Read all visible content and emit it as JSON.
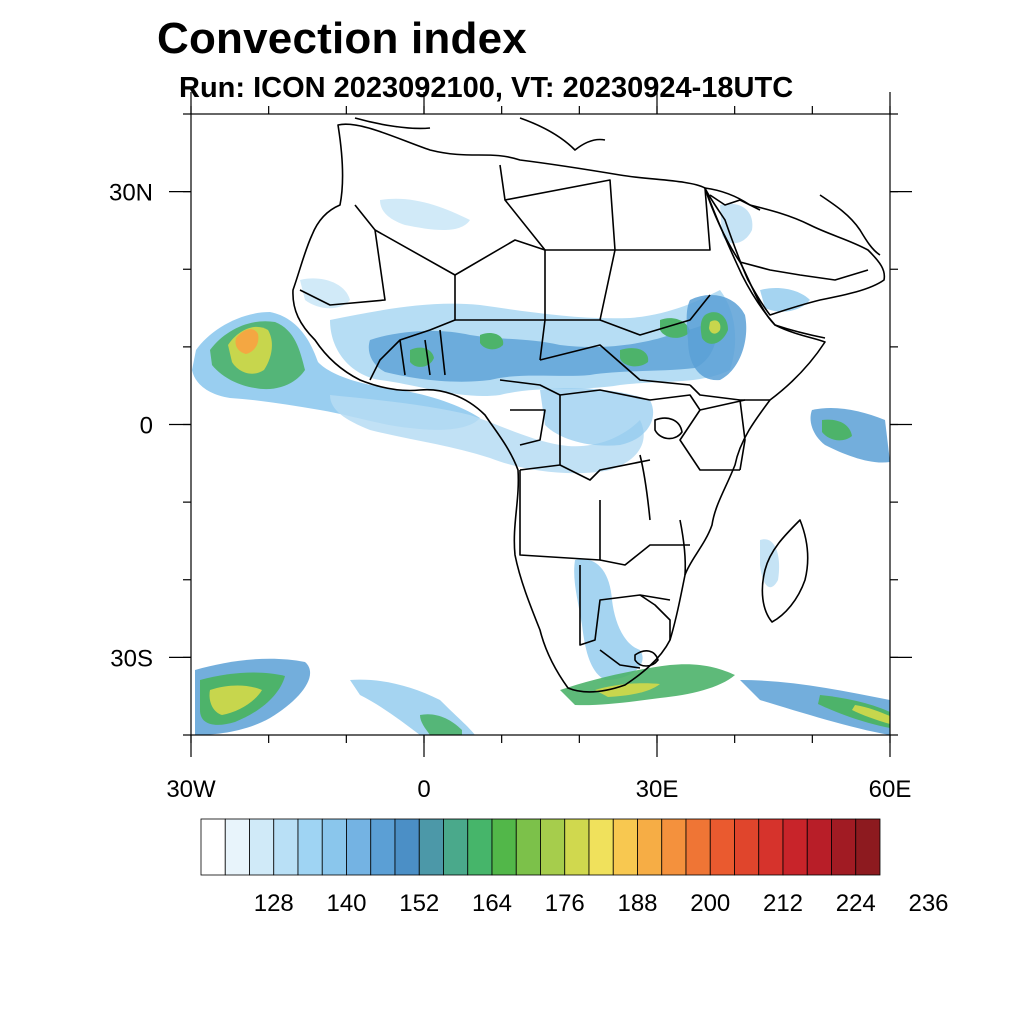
{
  "title": "Convection index",
  "subtitle": "Run: ICON 2023092100,  VT: 20230924-18UTC",
  "map": {
    "lon_range": [
      -30,
      60
    ],
    "lat_range": [
      -40,
      40
    ],
    "x_ticks": [
      {
        "lon": -30,
        "label": "30W"
      },
      {
        "lon": 0,
        "label": "0"
      },
      {
        "lon": 30,
        "label": "30E"
      },
      {
        "lon": 60,
        "label": "60E"
      }
    ],
    "y_ticks": [
      {
        "lat": 30,
        "label": "30N"
      },
      {
        "lat": 0,
        "label": "0"
      },
      {
        "lat": -30,
        "label": "30S"
      }
    ],
    "minor_lon_step": 10,
    "minor_lat_step": 10
  },
  "colorbar": {
    "colors": [
      "#ffffff",
      "#e8f4fb",
      "#d0eaf8",
      "#b9e0f6",
      "#9fd4f3",
      "#8ac6ec",
      "#74b3e3",
      "#5b9fd5",
      "#4b8fc6",
      "#4c98a8",
      "#4aa98b",
      "#46b56a",
      "#52b749",
      "#7cc14a",
      "#a6cd4c",
      "#d0d84e",
      "#f0e15c",
      "#f8c850",
      "#f6ad45",
      "#f4913d",
      "#ef7535",
      "#ea5a2f",
      "#e0452c",
      "#d6332c",
      "#c8242a",
      "#b81e28",
      "#a11b23",
      "#8d1a1f"
    ],
    "tick_labels": [
      "128",
      "140",
      "152",
      "164",
      "176",
      "188",
      "200",
      "212",
      "224",
      "236"
    ]
  },
  "field_colors": {
    "light": "#c6e5f6",
    "blue": "#8ec9ee",
    "mid": "#5aa0d6",
    "green": "#4db36a",
    "yellow": "#c7d64d",
    "orange": "#f4a742",
    "red": "#e34a2e"
  }
}
